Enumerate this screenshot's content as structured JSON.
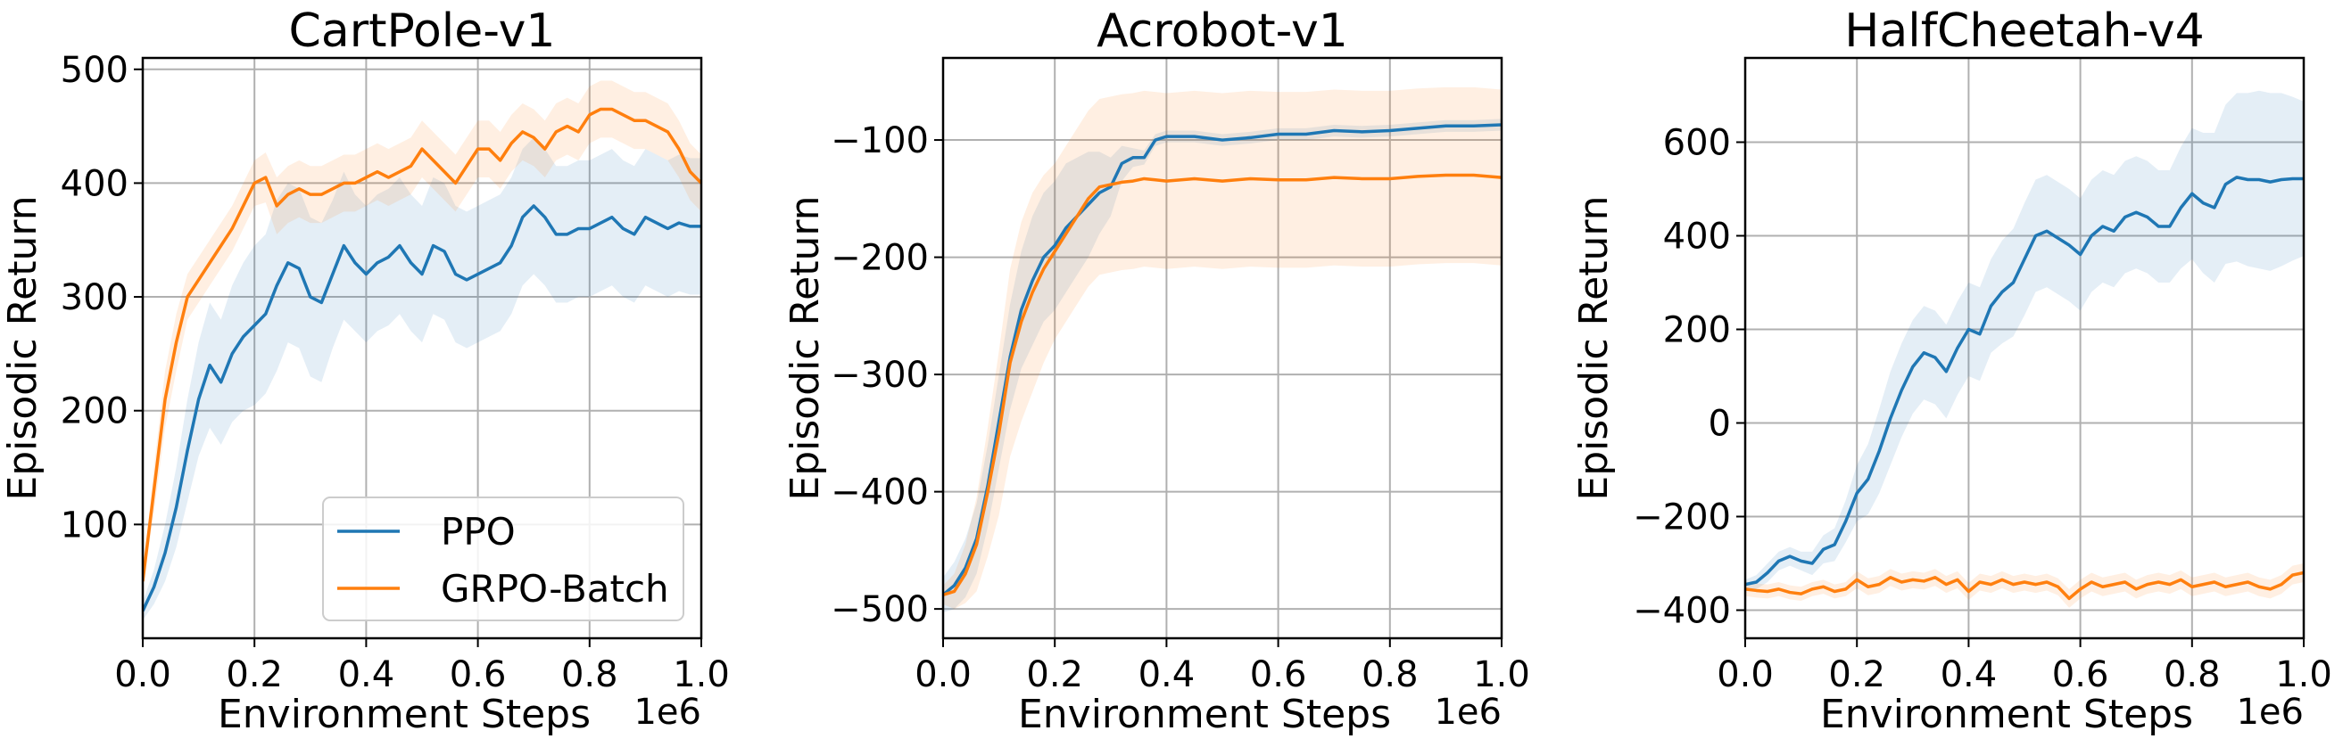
{
  "colors": {
    "ppo": "#1f77b4",
    "grpo": "#ff7f0e",
    "grid": "#b0b0b0",
    "axis": "#000000"
  },
  "chart_data": [
    {
      "type": "line",
      "title": "CartPole-v1",
      "xlabel": "Environment Steps",
      "ylabel": "Episodic Return",
      "x_multiplier": "1e6",
      "xlim": [
        0,
        1.0
      ],
      "ylim": [
        0,
        510
      ],
      "xticks": [
        "0.0",
        "0.2",
        "0.4",
        "0.6",
        "0.8",
        "1.0"
      ],
      "yticks": [
        "100",
        "200",
        "300",
        "400",
        "500"
      ],
      "grid": true,
      "legend": {
        "placement": "bottom-right",
        "entries": [
          "PPO",
          "GRPO-Batch"
        ]
      },
      "series": [
        {
          "name": "PPO",
          "x": [
            0,
            0.02,
            0.04,
            0.06,
            0.08,
            0.1,
            0.12,
            0.14,
            0.16,
            0.18,
            0.2,
            0.22,
            0.24,
            0.26,
            0.28,
            0.3,
            0.32,
            0.34,
            0.36,
            0.38,
            0.4,
            0.42,
            0.44,
            0.46,
            0.48,
            0.5,
            0.52,
            0.54,
            0.56,
            0.58,
            0.6,
            0.62,
            0.64,
            0.66,
            0.68,
            0.7,
            0.72,
            0.74,
            0.76,
            0.78,
            0.8,
            0.82,
            0.84,
            0.86,
            0.88,
            0.9,
            0.92,
            0.94,
            0.96,
            0.98,
            1.0
          ],
          "y": [
            24,
            45,
            75,
            115,
            165,
            210,
            240,
            225,
            250,
            265,
            275,
            285,
            310,
            330,
            325,
            300,
            295,
            320,
            345,
            330,
            320,
            330,
            335,
            345,
            330,
            320,
            345,
            340,
            320,
            315,
            320,
            325,
            330,
            345,
            370,
            380,
            370,
            355,
            355,
            360,
            360,
            365,
            370,
            360,
            355,
            370,
            365,
            360,
            365,
            362,
            362
          ],
          "band": [
            8,
            15,
            25,
            35,
            45,
            50,
            55,
            55,
            60,
            65,
            70,
            70,
            75,
            70,
            70,
            70,
            70,
            65,
            65,
            60,
            60,
            60,
            60,
            60,
            60,
            60,
            60,
            60,
            60,
            60,
            60,
            60,
            60,
            60,
            60,
            60,
            60,
            60,
            60,
            60,
            60,
            60,
            60,
            60,
            60,
            60,
            60,
            60,
            60,
            60,
            60
          ]
        },
        {
          "name": "GRPO-Batch",
          "x": [
            0,
            0.02,
            0.04,
            0.06,
            0.08,
            0.1,
            0.12,
            0.14,
            0.16,
            0.18,
            0.2,
            0.22,
            0.24,
            0.26,
            0.28,
            0.3,
            0.32,
            0.34,
            0.36,
            0.38,
            0.4,
            0.42,
            0.44,
            0.46,
            0.48,
            0.5,
            0.52,
            0.54,
            0.56,
            0.58,
            0.6,
            0.62,
            0.64,
            0.66,
            0.68,
            0.7,
            0.72,
            0.74,
            0.76,
            0.78,
            0.8,
            0.82,
            0.84,
            0.86,
            0.88,
            0.9,
            0.92,
            0.94,
            0.96,
            0.98,
            1.0
          ],
          "y": [
            50,
            130,
            210,
            260,
            300,
            315,
            330,
            345,
            360,
            380,
            400,
            405,
            380,
            390,
            395,
            390,
            390,
            395,
            400,
            400,
            405,
            410,
            405,
            410,
            415,
            430,
            420,
            410,
            400,
            415,
            430,
            430,
            420,
            435,
            445,
            440,
            430,
            445,
            450,
            445,
            460,
            465,
            465,
            460,
            455,
            455,
            450,
            445,
            430,
            410,
            400
          ],
          "band": [
            5,
            20,
            25,
            25,
            20,
            20,
            20,
            20,
            20,
            20,
            20,
            22,
            25,
            25,
            25,
            25,
            25,
            25,
            25,
            25,
            25,
            25,
            25,
            25,
            25,
            25,
            25,
            25,
            25,
            25,
            25,
            25,
            25,
            25,
            25,
            25,
            25,
            25,
            25,
            25,
            25,
            25,
            25,
            25,
            25,
            25,
            25,
            25,
            25,
            25,
            25
          ]
        }
      ]
    },
    {
      "type": "line",
      "title": "Acrobot-v1",
      "xlabel": "Environment Steps",
      "ylabel": "Episodic Return",
      "x_multiplier": "1e6",
      "xlim": [
        0,
        1.0
      ],
      "ylim": [
        -525,
        -30
      ],
      "xticks": [
        "0.0",
        "0.2",
        "0.4",
        "0.6",
        "0.8",
        "1.0"
      ],
      "yticks": [
        "−500",
        "−400",
        "−300",
        "−200",
        "−100"
      ],
      "grid": true,
      "series": [
        {
          "name": "PPO",
          "x": [
            0,
            0.02,
            0.04,
            0.06,
            0.08,
            0.1,
            0.12,
            0.14,
            0.16,
            0.18,
            0.2,
            0.22,
            0.24,
            0.26,
            0.28,
            0.3,
            0.32,
            0.34,
            0.36,
            0.38,
            0.4,
            0.45,
            0.5,
            0.55,
            0.6,
            0.65,
            0.7,
            0.75,
            0.8,
            0.85,
            0.9,
            0.95,
            1.0
          ],
          "y": [
            -488,
            -480,
            -465,
            -440,
            -395,
            -340,
            -285,
            -245,
            -220,
            -200,
            -190,
            -175,
            -165,
            -155,
            -145,
            -140,
            -120,
            -115,
            -115,
            -100,
            -97,
            -97,
            -100,
            -98,
            -95,
            -95,
            -92,
            -93,
            -92,
            -90,
            -88,
            -88,
            -87
          ],
          "band": [
            15,
            20,
            25,
            30,
            35,
            40,
            45,
            50,
            55,
            55,
            55,
            55,
            50,
            45,
            35,
            25,
            15,
            8,
            6,
            5,
            5,
            5,
            5,
            5,
            5,
            5,
            5,
            5,
            5,
            5,
            5,
            5,
            5
          ]
        },
        {
          "name": "GRPO-Batch",
          "x": [
            0,
            0.02,
            0.04,
            0.06,
            0.08,
            0.1,
            0.12,
            0.14,
            0.16,
            0.18,
            0.2,
            0.22,
            0.24,
            0.26,
            0.28,
            0.3,
            0.32,
            0.34,
            0.36,
            0.38,
            0.4,
            0.45,
            0.5,
            0.55,
            0.6,
            0.65,
            0.7,
            0.75,
            0.8,
            0.85,
            0.9,
            0.95,
            1.0
          ],
          "y": [
            -488,
            -485,
            -470,
            -445,
            -400,
            -350,
            -290,
            -255,
            -230,
            -210,
            -195,
            -180,
            -165,
            -150,
            -140,
            -138,
            -136,
            -135,
            -133,
            -134,
            -135,
            -133,
            -135,
            -133,
            -134,
            -134,
            -132,
            -133,
            -133,
            -131,
            -130,
            -130,
            -132
          ],
          "band": [
            8,
            15,
            25,
            40,
            55,
            70,
            80,
            85,
            85,
            80,
            75,
            75,
            75,
            75,
            75,
            75,
            75,
            75,
            75,
            75,
            75,
            75,
            75,
            75,
            75,
            75,
            75,
            75,
            75,
            75,
            75,
            75,
            75
          ]
        }
      ]
    },
    {
      "type": "line",
      "title": "HalfCheetah-v4",
      "xlabel": "Environment Steps",
      "ylabel": "Episodic Return",
      "x_multiplier": "1e6",
      "xlim": [
        0,
        1.0
      ],
      "ylim": [
        -460,
        780
      ],
      "xticks": [
        "0.0",
        "0.2",
        "0.4",
        "0.6",
        "0.8",
        "1.0"
      ],
      "yticks": [
        "−400",
        "−200",
        "0",
        "200",
        "400",
        "600"
      ],
      "grid": true,
      "series": [
        {
          "name": "PPO",
          "x": [
            0,
            0.02,
            0.04,
            0.06,
            0.08,
            0.1,
            0.12,
            0.14,
            0.16,
            0.18,
            0.2,
            0.22,
            0.24,
            0.26,
            0.28,
            0.3,
            0.32,
            0.34,
            0.36,
            0.38,
            0.4,
            0.42,
            0.44,
            0.46,
            0.48,
            0.5,
            0.52,
            0.54,
            0.56,
            0.58,
            0.6,
            0.62,
            0.64,
            0.66,
            0.68,
            0.7,
            0.72,
            0.74,
            0.76,
            0.78,
            0.8,
            0.82,
            0.84,
            0.86,
            0.88,
            0.9,
            0.92,
            0.94,
            0.96,
            0.98,
            1.0
          ],
          "y": [
            -345,
            -340,
            -320,
            -295,
            -285,
            -295,
            -300,
            -270,
            -260,
            -210,
            -150,
            -120,
            -60,
            10,
            70,
            120,
            150,
            140,
            110,
            160,
            200,
            190,
            250,
            280,
            300,
            350,
            400,
            410,
            395,
            380,
            360,
            400,
            420,
            410,
            440,
            450,
            440,
            420,
            420,
            460,
            490,
            470,
            460,
            510,
            525,
            520,
            520,
            515,
            520,
            522,
            522
          ],
          "band": [
            10,
            15,
            20,
            20,
            20,
            20,
            25,
            30,
            35,
            45,
            60,
            75,
            90,
            100,
            100,
            100,
            100,
            100,
            100,
            100,
            100,
            100,
            100,
            110,
            115,
            120,
            120,
            120,
            120,
            120,
            120,
            120,
            120,
            120,
            120,
            120,
            120,
            120,
            120,
            130,
            140,
            150,
            160,
            170,
            180,
            185,
            190,
            190,
            185,
            175,
            165
          ]
        },
        {
          "name": "GRPO-Batch",
          "x": [
            0,
            0.02,
            0.04,
            0.06,
            0.08,
            0.1,
            0.12,
            0.14,
            0.16,
            0.18,
            0.2,
            0.22,
            0.24,
            0.26,
            0.28,
            0.3,
            0.32,
            0.34,
            0.36,
            0.38,
            0.4,
            0.42,
            0.44,
            0.46,
            0.48,
            0.5,
            0.52,
            0.54,
            0.56,
            0.58,
            0.6,
            0.62,
            0.64,
            0.66,
            0.68,
            0.7,
            0.72,
            0.74,
            0.76,
            0.78,
            0.8,
            0.82,
            0.84,
            0.86,
            0.88,
            0.9,
            0.92,
            0.94,
            0.96,
            0.98,
            1.0
          ],
          "y": [
            -355,
            -358,
            -360,
            -355,
            -362,
            -365,
            -355,
            -350,
            -360,
            -355,
            -335,
            -350,
            -345,
            -330,
            -340,
            -335,
            -338,
            -330,
            -345,
            -335,
            -360,
            -340,
            -345,
            -335,
            -345,
            -340,
            -345,
            -340,
            -350,
            -375,
            -355,
            -340,
            -350,
            -345,
            -340,
            -355,
            -345,
            -340,
            -345,
            -335,
            -350,
            -345,
            -340,
            -350,
            -345,
            -340,
            -350,
            -355,
            -345,
            -325,
            -320
          ],
          "band": [
            15,
            15,
            15,
            15,
            15,
            15,
            15,
            15,
            15,
            15,
            18,
            18,
            18,
            18,
            18,
            18,
            18,
            18,
            18,
            18,
            18,
            18,
            18,
            18,
            18,
            18,
            18,
            18,
            18,
            20,
            20,
            20,
            20,
            20,
            20,
            20,
            20,
            20,
            20,
            20,
            20,
            20,
            20,
            20,
            20,
            20,
            20,
            20,
            20,
            20,
            20
          ]
        }
      ]
    }
  ]
}
